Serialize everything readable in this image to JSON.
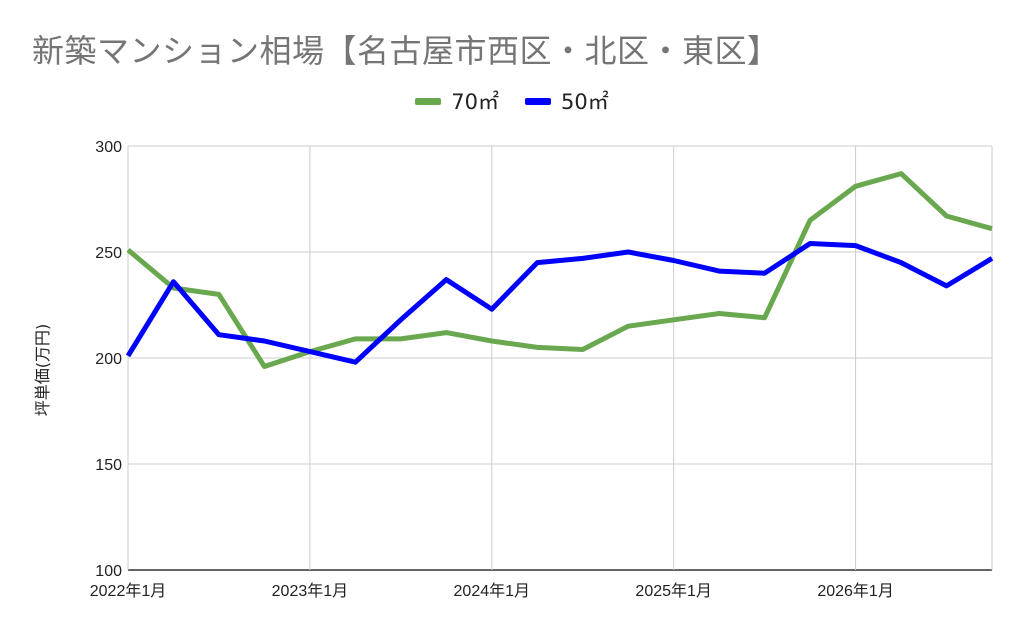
{
  "chart_data": {
    "type": "line",
    "title": "新築マンション相場【名古屋市西区・北区・東区】",
    "ylabel": "坪単価(万円)",
    "xlabel": "",
    "ylim": [
      100,
      300
    ],
    "yticks": [
      100,
      150,
      200,
      250,
      300
    ],
    "xticks": [
      "2022年1月",
      "2023年1月",
      "2024年1月",
      "2025年1月",
      "2026年1月"
    ],
    "grid": true,
    "legend_position": "top-center",
    "x": [
      "2022-01",
      "2022-04",
      "2022-07",
      "2022-10",
      "2023-01",
      "2023-04",
      "2023-07",
      "2023-10",
      "2024-01",
      "2024-04",
      "2024-07",
      "2024-10",
      "2025-01",
      "2025-04",
      "2025-07",
      "2025-10",
      "2026-01",
      "2026-04",
      "2026-07",
      "2026-10"
    ],
    "series": [
      {
        "name": "70㎡",
        "color": "#6aa84f",
        "values": [
          251,
          233,
          230,
          196,
          203,
          209,
          209,
          212,
          208,
          205,
          204,
          215,
          218,
          221,
          219,
          265,
          281,
          287,
          267,
          261
        ]
      },
      {
        "name": "50㎡",
        "color": "#0000ff",
        "values": [
          201,
          236,
          211,
          208,
          203,
          198,
          218,
          237,
          223,
          245,
          247,
          250,
          246,
          241,
          240,
          254,
          253,
          245,
          234,
          247
        ]
      }
    ]
  }
}
